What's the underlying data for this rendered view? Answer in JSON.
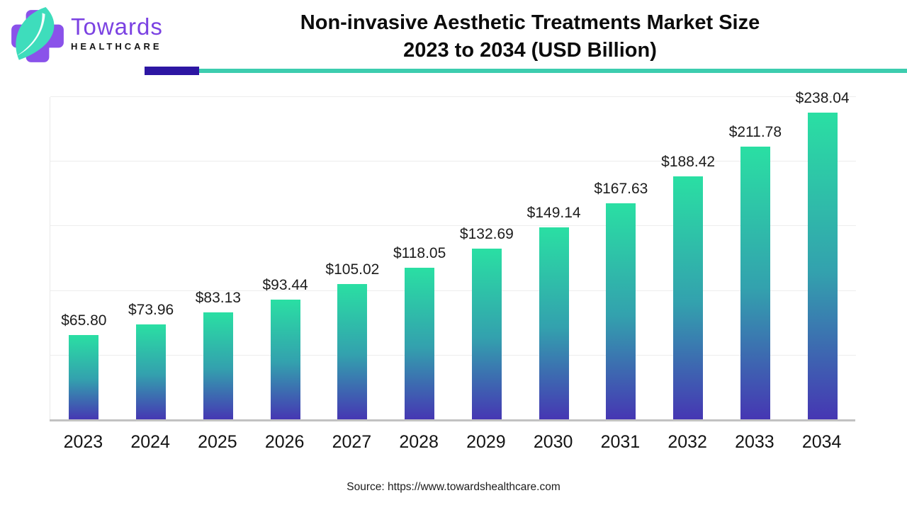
{
  "brand": {
    "name": "Towards",
    "subname": "HEALTHCARE"
  },
  "header": {
    "title_line1": "Non-invasive Aesthetic Treatments Market Size",
    "title_line2": "2023 to 2034 (USD Billion)"
  },
  "source": {
    "text": "Source: https://www.towardshealthcare.com"
  },
  "colors": {
    "brand_purple": "#7B42E2",
    "logo_cross_purple": "#8A52EA",
    "logo_leaf_teal": "#3EDDBC",
    "accent_indigo": "#2D16A3",
    "accent_teal": "#3DCDAF",
    "bar_gradient_top": "#2ADFA3",
    "bar_gradient_mid": "#33A1AE",
    "bar_gradient_bottom": "#4636B3",
    "gridline": "#EDEDED",
    "axis": "#C2C2C2",
    "text": "#0C0C0C"
  },
  "chart_data": {
    "type": "bar",
    "title": "Non-invasive Aesthetic Treatments Market Size 2023 to 2034 (USD Billion)",
    "unit": "USD Billion",
    "categories": [
      "2023",
      "2024",
      "2025",
      "2026",
      "2027",
      "2028",
      "2029",
      "2030",
      "2031",
      "2032",
      "2033",
      "2034"
    ],
    "values": [
      65.8,
      73.96,
      83.13,
      93.44,
      105.02,
      118.05,
      132.69,
      149.14,
      167.63,
      188.42,
      211.78,
      238.04
    ],
    "value_labels": [
      "$65.80",
      "$73.96",
      "$83.13",
      "$93.44",
      "$105.02",
      "$118.05",
      "$132.69",
      "$149.14",
      "$167.63",
      "$188.42",
      "$211.78",
      "$238.04"
    ],
    "xlabel": "",
    "ylabel": "",
    "ylim": [
      0,
      250
    ],
    "gridline_step": 50,
    "grid": "horizontal-light",
    "legend": "none"
  }
}
